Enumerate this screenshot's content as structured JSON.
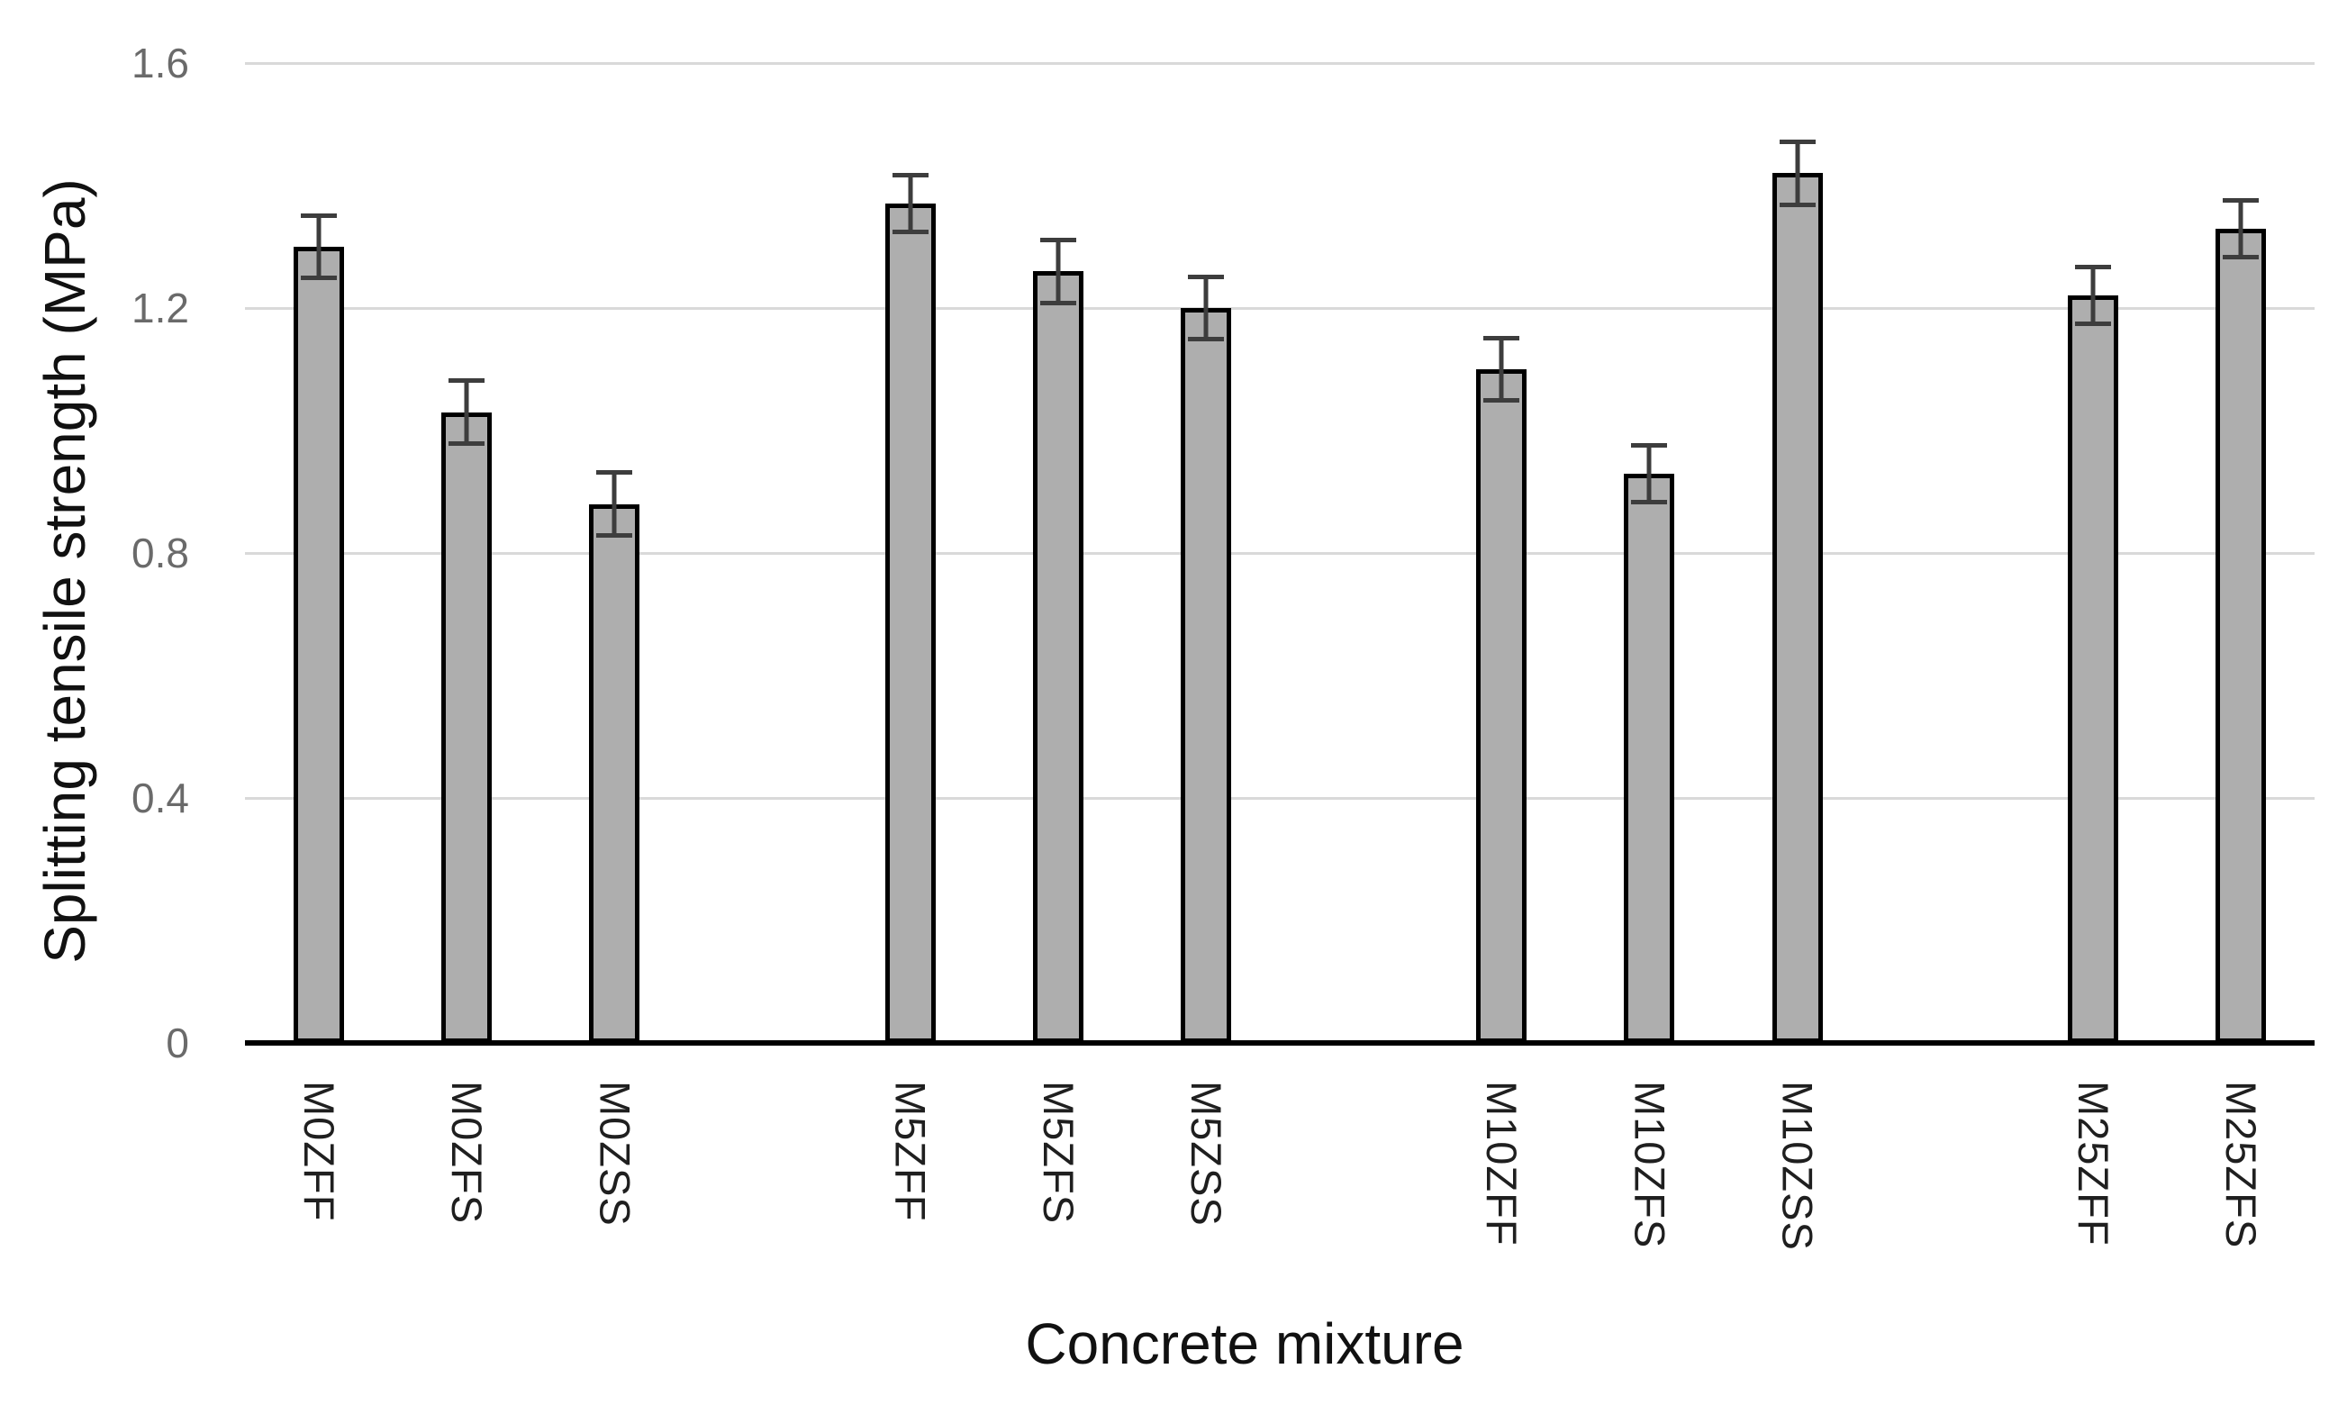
{
  "chart_data": {
    "type": "bar",
    "title": "",
    "xlabel": "Concrete mixture",
    "ylabel": "Splitting tensile strength (MPa)",
    "categories": [
      "M0ZFF",
      "M0ZFS",
      "M0ZSS",
      "M5ZFF",
      "M5ZFS",
      "M5ZSS",
      "M10ZFF",
      "M10ZFS",
      "M10ZSS",
      "M25ZFF",
      "M25ZFS"
    ],
    "values": [
      1.3,
      1.03,
      0.88,
      1.37,
      1.26,
      1.2,
      1.1,
      0.93,
      1.42,
      1.22,
      1.33
    ],
    "error_bars": [
      0.055,
      0.055,
      0.055,
      0.05,
      0.055,
      0.055,
      0.055,
      0.05,
      0.055,
      0.05,
      0.05
    ],
    "group_sizes": [
      3,
      3,
      3,
      2
    ],
    "ylim": [
      0,
      1.6
    ],
    "yticks": [
      0,
      0.4,
      0.8,
      1.2,
      1.6
    ],
    "ytick_labels": [
      "0",
      "0.4",
      "0.8",
      "1.2",
      "1.6"
    ],
    "grid": "horizontal",
    "legend": "none",
    "colors": {
      "bar_fill": "#aeaeae",
      "bar_border": "#000000",
      "error_bar": "#3d3d3d",
      "gridline": "#d9d9d9",
      "axis_line": "#000000",
      "ytick_text": "#6a6a6a",
      "xtick_text": "#1f1f1f",
      "title_text": "#111111"
    }
  }
}
